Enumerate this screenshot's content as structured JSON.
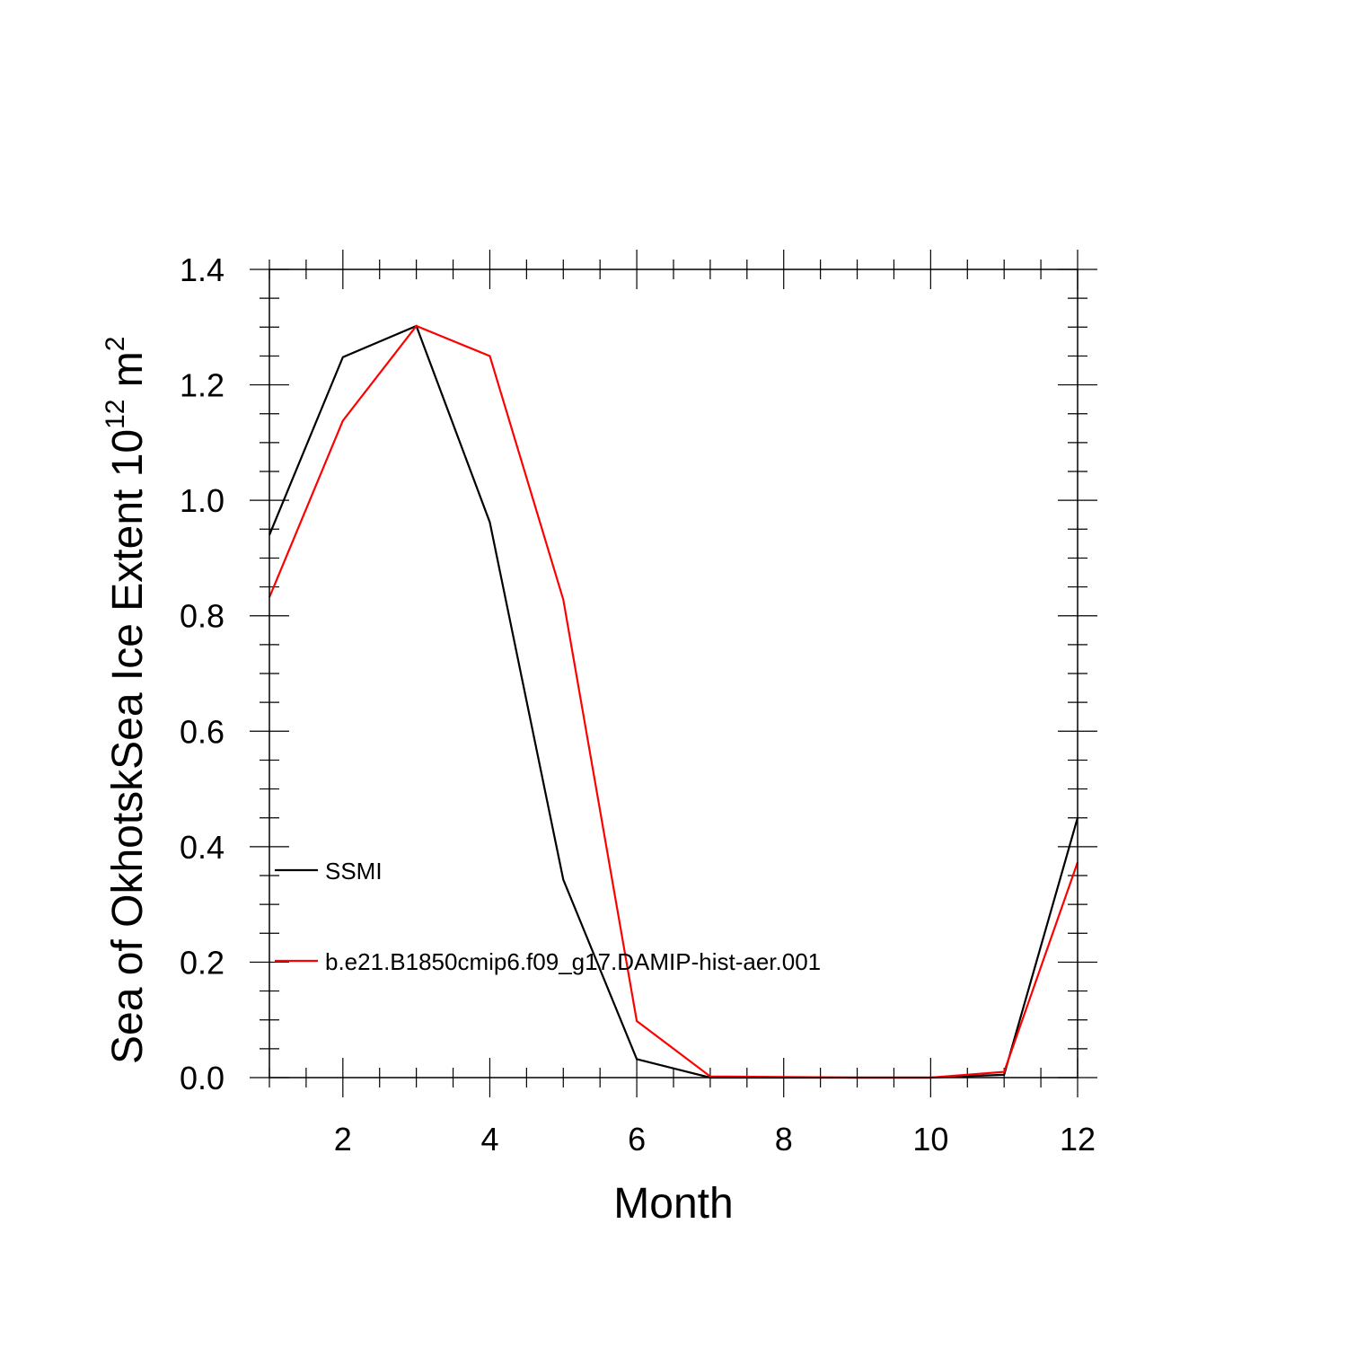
{
  "chart_data": {
    "type": "line",
    "x": [
      1,
      2,
      3,
      4,
      5,
      6,
      7,
      8,
      9,
      10,
      11,
      12
    ],
    "series": [
      {
        "name": "SSMI",
        "color": "#000000",
        "values": [
          0.94,
          1.248,
          1.302,
          0.962,
          0.343,
          0.032,
          0.0,
          0.0,
          0.0,
          0.0,
          0.005,
          0.45
        ]
      },
      {
        "name": "b.e21.B1850cmip6.f09_g17.DAMIP-hist-aer.001",
        "color": "#ff0000",
        "values": [
          0.832,
          1.138,
          1.302,
          1.25,
          0.828,
          0.098,
          0.002,
          0.001,
          0.0,
          0.0,
          0.01,
          0.373
        ]
      }
    ],
    "xlabel": "Month",
    "ylabel": "Sea of OkhotskSea Ice Extent 10",
    "ylabel_exponent": "12",
    "ylabel_unit": " m",
    "ylabel_unit_exponent": "2",
    "xlim": [
      1,
      12
    ],
    "ylim": [
      0,
      1.4
    ],
    "xticks": [
      "2",
      "4",
      "6",
      "8",
      "10",
      "12"
    ],
    "xtick_values": [
      2,
      4,
      6,
      8,
      10,
      12
    ],
    "yticks": [
      "0.0",
      "0.2",
      "0.4",
      "0.6",
      "0.8",
      "1.0",
      "1.2",
      "1.4"
    ],
    "ytick_values": [
      0,
      0.2,
      0.4,
      0.6,
      0.8,
      1.0,
      1.2,
      1.4
    ],
    "x_minor_step": 0.5,
    "y_minor_step": 0.05,
    "grid": false,
    "legend_placement": "lower-left"
  }
}
